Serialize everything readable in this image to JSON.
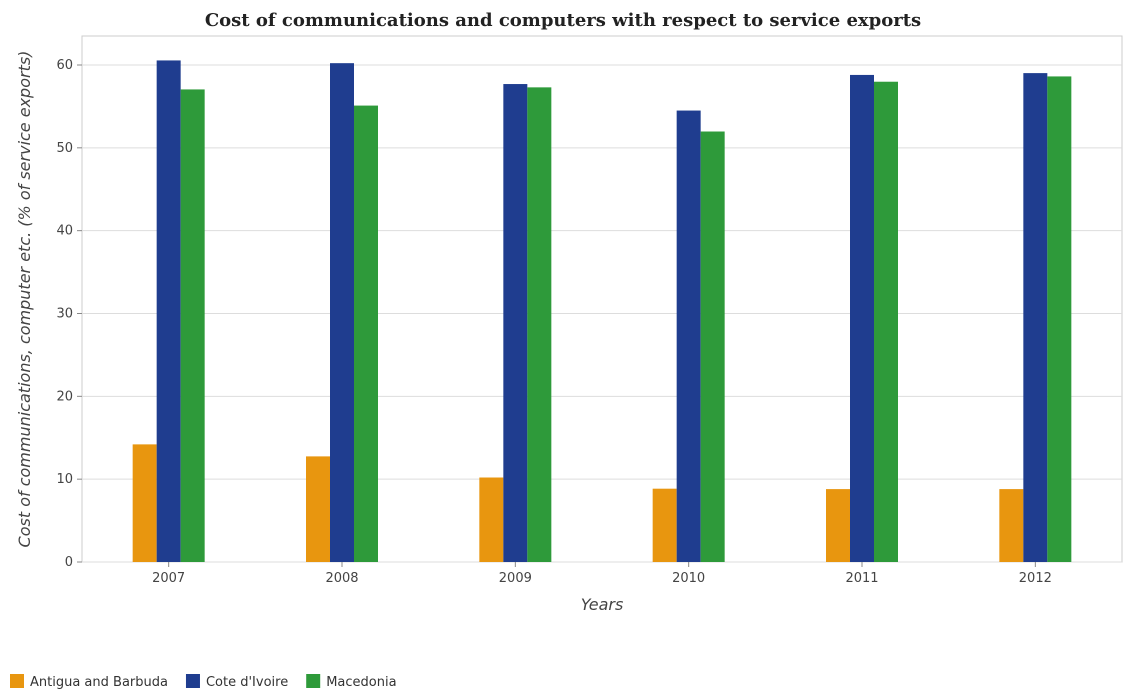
{
  "chart_data": {
    "type": "bar",
    "title": "Cost of communications and computers with respect to service exports",
    "xlabel": "Years",
    "ylabel": "Cost of communications, computer etc. (% of service exports)",
    "categories": [
      "2007",
      "2008",
      "2009",
      "2010",
      "2011",
      "2012"
    ],
    "ylim": [
      0,
      63.5
    ],
    "yticks": [
      0,
      10,
      20,
      30,
      40,
      50,
      60
    ],
    "grid": true,
    "legend_position": "bottom-left",
    "series": [
      {
        "name": "Antigua and Barbuda",
        "color": "#e8960f",
        "values": [
          14.2,
          12.75,
          10.2,
          8.85,
          8.8,
          8.8
        ]
      },
      {
        "name": "Cote d'Ivoire",
        "color": "#1f3d8f",
        "values": [
          60.55,
          60.22,
          57.7,
          54.5,
          58.8,
          59.02
        ]
      },
      {
        "name": "Macedonia",
        "color": "#2e9a3a",
        "values": [
          57.05,
          55.1,
          57.3,
          51.97,
          57.98,
          58.62
        ]
      }
    ]
  }
}
